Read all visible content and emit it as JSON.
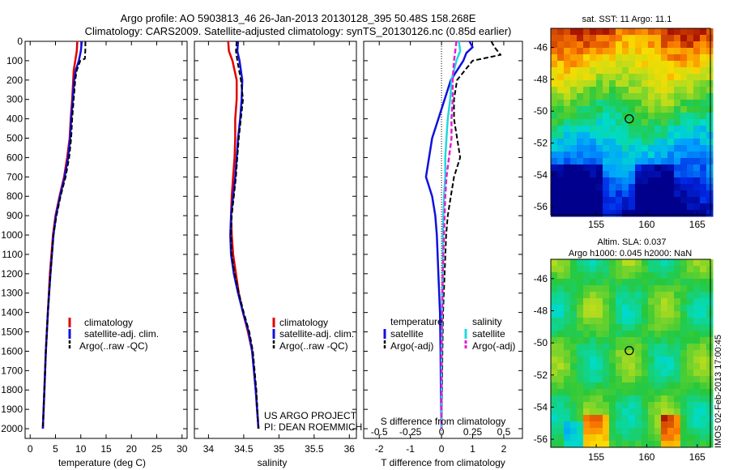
{
  "header": {
    "line1": "Argo profile: AO 5903813_46 26-Jan-2013 20130128_395 50.48S 158.268E",
    "line2": "Climatology: CARS2009. Satellite-adjusted climatology: synTS_20130126.nc (0.85d earlier)"
  },
  "side_label": "IMOS 02-Feb-2013 17:00:45",
  "colors": {
    "climatology": "#e00000",
    "satellite": "#1010e0",
    "argo": "#000000",
    "satellite_diff": "#20d8e0",
    "argo_diff": "#e020d0"
  },
  "chart_data": [
    {
      "type": "line",
      "panel": "temperature",
      "xlabel": "temperature (deg C)",
      "ylabel": "",
      "xlim": [
        -1,
        31
      ],
      "ylim": [
        2050,
        0
      ],
      "xticks": [
        0,
        5,
        10,
        15,
        20,
        25,
        30
      ],
      "yticks": [
        0,
        100,
        200,
        300,
        400,
        500,
        600,
        700,
        800,
        900,
        1000,
        1100,
        1200,
        1300,
        1400,
        1500,
        1600,
        1700,
        1800,
        1900,
        2000
      ],
      "legend": [
        "climatology",
        "satellite-adj. clim.",
        "Argo(..raw -QC)"
      ],
      "series": [
        {
          "name": "climatology",
          "depth": [
            0,
            50,
            100,
            150,
            200,
            300,
            400,
            500,
            600,
            700,
            800,
            900,
            1000,
            1200,
            1400,
            1600,
            1800,
            2000
          ],
          "values": [
            9.3,
            9.2,
            8.9,
            8.6,
            8.5,
            8.3,
            8.0,
            7.8,
            7.3,
            6.7,
            5.8,
            5.0,
            4.5,
            3.9,
            3.5,
            3.1,
            2.8,
            2.5
          ]
        },
        {
          "name": "satellite-adj. clim.",
          "depth": [
            0,
            50,
            100,
            150,
            200,
            300,
            400,
            500,
            600,
            700,
            800,
            900,
            1000,
            1200,
            1400,
            1600,
            1800,
            2000
          ],
          "values": [
            10.2,
            10.0,
            9.6,
            9.0,
            8.7,
            8.4,
            8.1,
            7.9,
            7.5,
            6.8,
            5.9,
            5.1,
            4.6,
            4.0,
            3.5,
            3.1,
            2.8,
            2.5
          ]
        },
        {
          "name": "Argo(..raw -QC)",
          "depth": [
            0,
            40,
            90,
            100,
            150,
            200,
            300,
            400,
            500,
            600,
            700,
            800,
            900,
            1000,
            1200,
            1400,
            1600,
            1800,
            2000
          ],
          "values": [
            10.9,
            10.9,
            10.8,
            9.9,
            9.2,
            8.9,
            8.6,
            8.3,
            8.1,
            7.7,
            7.0,
            6.0,
            5.2,
            4.6,
            4.0,
            3.5,
            3.1,
            2.8,
            2.5
          ]
        }
      ]
    },
    {
      "type": "line",
      "panel": "salinity",
      "xlabel": "salinity",
      "ylabel": "",
      "xlim": [
        33.8,
        36.1
      ],
      "ylim": [
        2050,
        0
      ],
      "xticks": [
        34,
        34.5,
        35,
        35.5,
        36
      ],
      "legend": [
        "climatology",
        "satellite-adj. clim.",
        "Argo(..raw -QC)"
      ],
      "series": [
        {
          "name": "climatology",
          "depth": [
            0,
            50,
            100,
            200,
            300,
            400,
            500,
            600,
            700,
            800,
            900,
            1000,
            1100,
            1200,
            1300,
            1400,
            1500,
            1600,
            1800,
            2000
          ],
          "values": [
            34.28,
            34.29,
            34.34,
            34.4,
            34.4,
            34.38,
            34.38,
            34.37,
            34.35,
            34.33,
            34.32,
            34.33,
            34.35,
            34.39,
            34.43,
            34.49,
            34.56,
            34.62,
            34.67,
            34.71
          ]
        },
        {
          "name": "satellite-adj. clim.",
          "depth": [
            0,
            50,
            100,
            200,
            300,
            400,
            500,
            600,
            700,
            800,
            900,
            1000,
            1100,
            1200,
            1300,
            1400,
            1500,
            1600,
            1800,
            2000
          ],
          "values": [
            34.42,
            34.41,
            34.44,
            34.48,
            34.47,
            34.45,
            34.42,
            34.4,
            34.38,
            34.35,
            34.32,
            34.31,
            34.32,
            34.36,
            34.42,
            34.49,
            34.57,
            34.62,
            34.67,
            34.71
          ]
        },
        {
          "name": "Argo(..raw -QC)",
          "depth": [
            0,
            50,
            100,
            200,
            300,
            400,
            500,
            600,
            700,
            800,
            900,
            1000,
            1100,
            1200,
            1300,
            1400,
            1500,
            1600,
            1800,
            2000
          ],
          "values": [
            34.4,
            34.39,
            34.41,
            34.46,
            34.49,
            34.46,
            34.43,
            34.41,
            34.39,
            34.36,
            34.33,
            34.32,
            34.33,
            34.37,
            34.43,
            34.5,
            34.58,
            34.63,
            34.68,
            34.71
          ]
        }
      ]
    },
    {
      "type": "line",
      "panel": "difference",
      "xlabel": "T difference from climatology",
      "top_axis_label": "S difference from climatology",
      "xlim": [
        -2.5,
        2.6
      ],
      "ylim": [
        2050,
        0
      ],
      "xticks": [
        -2,
        -1,
        0,
        1,
        2
      ],
      "top_ticks": [
        "-0.5",
        "-0.25",
        "0",
        "0.25",
        "0.5"
      ],
      "legend_title_t": "temperature",
      "legend_title_s": "salinity",
      "legend": [
        "satellite",
        "Argo(-adj)",
        "satellite",
        "Argo(-adj)"
      ],
      "series": [
        {
          "name": "satellite",
          "group": "temperature",
          "depth": [
            0,
            30,
            60,
            100,
            200,
            300,
            400,
            500,
            600,
            700,
            800,
            900,
            1000,
            1200,
            1400,
            1600,
            1800,
            2000
          ],
          "values": [
            0.9,
            1.0,
            0.8,
            0.7,
            0.3,
            0.1,
            -0.1,
            -0.3,
            -0.4,
            -0.5,
            -0.3,
            -0.2,
            -0.15,
            -0.1,
            -0.05,
            -0.03,
            -0.02,
            0.0
          ]
        },
        {
          "name": "Argo(-adj)",
          "group": "temperature",
          "depth": [
            0,
            30,
            70,
            100,
            200,
            300,
            400,
            500,
            600,
            700,
            800,
            900,
            1000,
            1200,
            1400,
            1600,
            1800,
            2000
          ],
          "values": [
            1.6,
            1.7,
            1.9,
            1.0,
            0.5,
            0.4,
            0.4,
            0.5,
            0.6,
            0.4,
            0.3,
            0.2,
            0.15,
            0.1,
            0.05,
            0.03,
            0.02,
            0.0
          ]
        },
        {
          "name": "satellite",
          "group": "salinity",
          "depth": [
            0,
            50,
            100,
            200,
            300,
            400,
            500,
            600,
            700,
            800,
            1000,
            1200,
            1400,
            1600,
            1800,
            2000
          ],
          "values": [
            0.14,
            0.15,
            0.12,
            0.08,
            0.07,
            0.05,
            0.04,
            0.03,
            0.03,
            0.02,
            0.01,
            0.01,
            0.005,
            0.0,
            0.0,
            0.0
          ]
        },
        {
          "name": "Argo(-adj)",
          "group": "salinity",
          "depth": [
            0,
            50,
            100,
            200,
            300,
            400,
            500,
            600,
            700,
            800,
            1000,
            1200,
            1400,
            1600,
            1800,
            2000
          ],
          "values": [
            0.12,
            0.11,
            0.1,
            0.09,
            0.09,
            0.08,
            0.08,
            0.06,
            0.04,
            0.03,
            0.02,
            0.01,
            0.005,
            0.0,
            0.0,
            0.0
          ]
        }
      ]
    },
    {
      "type": "heatmap",
      "panel": "sst-map",
      "title": "sat. SST: 11 Argo: 11.1",
      "xlim": [
        150.5,
        166.3
      ],
      "ylim": [
        -56.5,
        -44.8
      ],
      "xticks": [
        155,
        160,
        165
      ],
      "yticks": [
        -46,
        -48,
        -50,
        -52,
        -54,
        -56
      ],
      "marker": {
        "lon": 158.268,
        "lat": -50.48
      }
    },
    {
      "type": "heatmap",
      "panel": "sla-map",
      "title": "Altim. SLA: 0.037",
      "title2": "Argo h1000: 0.045 h2000: NaN",
      "xlim": [
        150.5,
        166.3
      ],
      "ylim": [
        -56.5,
        -44.8
      ],
      "xticks": [
        155,
        160,
        165
      ],
      "yticks": [
        -46,
        -48,
        -50,
        -52,
        -54,
        -56
      ],
      "marker": {
        "lon": 158.268,
        "lat": -50.48
      }
    }
  ],
  "legends": {
    "temperature": [
      "climatology",
      "satellite-adj. clim.",
      "Argo(..raw -QC)"
    ],
    "salinity": [
      "climatology",
      "satellite-adj. clim.",
      "Argo(..raw -QC)"
    ]
  },
  "project_note": {
    "line1": "US ARGO PROJECT",
    "line2": "PI: DEAN ROEMMICH"
  }
}
